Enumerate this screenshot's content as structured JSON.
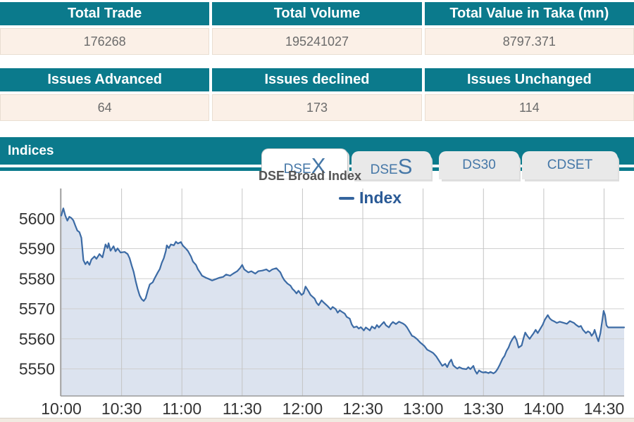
{
  "tables": [
    {
      "headers": [
        "Total Trade",
        "Total Volume",
        "Total Value in Taka (mn)"
      ],
      "values": [
        "176268",
        "195241027",
        "8797.371"
      ]
    },
    {
      "headers": [
        "Issues Advanced",
        "Issues declined",
        "Issues Unchanged"
      ],
      "values": [
        "64",
        "173",
        "114"
      ]
    }
  ],
  "indices": {
    "title": "Indices"
  },
  "tabs": [
    {
      "label_prefix": "DSE",
      "label_suffix": "X",
      "active": true
    },
    {
      "label_prefix": "DSE",
      "label_suffix": "S",
      "active": false
    },
    {
      "label": "DS30",
      "active": false
    },
    {
      "label": "CDSET",
      "active": false
    }
  ],
  "theme": {
    "teal": "#0b7a8c",
    "cream": "#fbf0e7",
    "tab_text_blue": "#4577a7",
    "legend_blue": "#2a5a96"
  },
  "chart_data": {
    "type": "area",
    "title": "DSE Broad Index",
    "legend_label": "Index",
    "legend_position": "top-center",
    "grid": true,
    "xlim": [
      0,
      280
    ],
    "ylim": [
      5541,
      5610
    ],
    "x_unit": "minutes after 10:00",
    "x_ticks": [
      {
        "t": 0,
        "label": "10:00"
      },
      {
        "t": 30,
        "label": "10:30"
      },
      {
        "t": 60,
        "label": "11:00"
      },
      {
        "t": 90,
        "label": "11:30"
      },
      {
        "t": 120,
        "label": "12:00"
      },
      {
        "t": 150,
        "label": "12:30"
      },
      {
        "t": 180,
        "label": "13:00"
      },
      {
        "t": 210,
        "label": "13:30"
      },
      {
        "t": 240,
        "label": "14:00"
      },
      {
        "t": 270,
        "label": "14:30"
      }
    ],
    "y_ticks": [
      5550,
      5560,
      5570,
      5580,
      5590,
      5600
    ],
    "colors": {
      "line": "#3c6ba5",
      "fill": "#dce3ef"
    },
    "series": [
      {
        "name": "Index",
        "points": [
          [
            0,
            5601
          ],
          [
            1,
            5603.4
          ],
          [
            2,
            5601
          ],
          [
            3,
            5599.3
          ],
          [
            4,
            5600.6
          ],
          [
            5,
            5600.2
          ],
          [
            6,
            5599.4
          ],
          [
            7,
            5597.6
          ],
          [
            8,
            5596
          ],
          [
            9,
            5595.5
          ],
          [
            10,
            5593.6
          ],
          [
            11,
            5586.2
          ],
          [
            12,
            5584.8
          ],
          [
            13,
            5585.7
          ],
          [
            14,
            5584.6
          ],
          [
            15,
            5586.4
          ],
          [
            16.5,
            5587.4
          ],
          [
            17.5,
            5586.6
          ],
          [
            19,
            5588.2
          ],
          [
            20.5,
            5587.1
          ],
          [
            22,
            5591.4
          ],
          [
            23,
            5590.2
          ],
          [
            23.5,
            5591.8
          ],
          [
            24.5,
            5589.3
          ],
          [
            26,
            5590.8
          ],
          [
            27,
            5589.1
          ],
          [
            28,
            5590.1
          ],
          [
            29.5,
            5588.7
          ],
          [
            31.5,
            5588.9
          ],
          [
            33,
            5588.2
          ],
          [
            34,
            5586.8
          ],
          [
            35,
            5584.4
          ],
          [
            36,
            5582.3
          ],
          [
            37,
            5579.2
          ],
          [
            38,
            5576.6
          ],
          [
            39,
            5574.4
          ],
          [
            40,
            5573.2
          ],
          [
            41,
            5572.6
          ],
          [
            42,
            5573.5
          ],
          [
            43,
            5576
          ],
          [
            44,
            5578.1
          ],
          [
            45.5,
            5578.8
          ],
          [
            46.5,
            5580.2
          ],
          [
            48,
            5582.1
          ],
          [
            49,
            5583.2
          ],
          [
            50,
            5585.3
          ],
          [
            51,
            5586.8
          ],
          [
            52,
            5589.2
          ],
          [
            52.5,
            5591.1
          ],
          [
            53.5,
            5590.2
          ],
          [
            54.5,
            5591.4
          ],
          [
            56,
            5591.1
          ],
          [
            57,
            5592.3
          ],
          [
            58,
            5591.7
          ],
          [
            59.5,
            5592.2
          ],
          [
            60.5,
            5591
          ],
          [
            62,
            5590
          ],
          [
            63,
            5589.2
          ],
          [
            64.5,
            5587.4
          ],
          [
            65.5,
            5585.7
          ],
          [
            67,
            5584.6
          ],
          [
            68,
            5583.1
          ],
          [
            69,
            5582.1
          ],
          [
            70,
            5581
          ],
          [
            72,
            5580.3
          ],
          [
            73.5,
            5579.9
          ],
          [
            75,
            5579.4
          ],
          [
            77,
            5579.9
          ],
          [
            78.5,
            5580.3
          ],
          [
            80.5,
            5580.6
          ],
          [
            82,
            5581.4
          ],
          [
            84,
            5581
          ],
          [
            85.5,
            5581.7
          ],
          [
            87.5,
            5582.5
          ],
          [
            89,
            5583.6
          ],
          [
            90,
            5584.6
          ],
          [
            91,
            5583.1
          ],
          [
            93,
            5582.1
          ],
          [
            94.5,
            5582.5
          ],
          [
            96.5,
            5581.7
          ],
          [
            98,
            5582.5
          ],
          [
            100,
            5582.7
          ],
          [
            102,
            5583.1
          ],
          [
            103.5,
            5582.4
          ],
          [
            105,
            5583.1
          ],
          [
            107,
            5583.5
          ],
          [
            109,
            5582.1
          ],
          [
            110,
            5580.6
          ],
          [
            111,
            5579.5
          ],
          [
            112.5,
            5578.4
          ],
          [
            114,
            5577.7
          ],
          [
            115,
            5576.6
          ],
          [
            116,
            5576
          ],
          [
            117,
            5575.1
          ],
          [
            118,
            5576
          ],
          [
            119.5,
            5574.6
          ],
          [
            120.5,
            5575.1
          ],
          [
            121.5,
            5577.4
          ],
          [
            123,
            5575.8
          ],
          [
            124,
            5574.6
          ],
          [
            125,
            5574
          ],
          [
            126,
            5573.4
          ],
          [
            127,
            5572
          ],
          [
            128,
            5571.2
          ],
          [
            129.5,
            5572.8
          ],
          [
            130.5,
            5572.1
          ],
          [
            132.5,
            5570.9
          ],
          [
            134,
            5569.8
          ],
          [
            135,
            5570.6
          ],
          [
            136.5,
            5569.9
          ],
          [
            137.5,
            5568.7
          ],
          [
            138.5,
            5569.5
          ],
          [
            140,
            5568.8
          ],
          [
            141,
            5568.4
          ],
          [
            142,
            5567.3
          ],
          [
            143.5,
            5566.7
          ],
          [
            144.5,
            5564.8
          ],
          [
            145.5,
            5563.8
          ],
          [
            147,
            5564.1
          ],
          [
            148,
            5563.4
          ],
          [
            149,
            5563.9
          ],
          [
            150.5,
            5562.8
          ],
          [
            151.5,
            5563.8
          ],
          [
            153.5,
            5562.8
          ],
          [
            154.5,
            5564.1
          ],
          [
            156,
            5563.4
          ],
          [
            157,
            5564.6
          ],
          [
            158,
            5563.8
          ],
          [
            159.5,
            5564.9
          ],
          [
            160.5,
            5565.6
          ],
          [
            161.5,
            5564.5
          ],
          [
            163,
            5563.8
          ],
          [
            164,
            5564.9
          ],
          [
            165,
            5565.6
          ],
          [
            166.5,
            5564.9
          ],
          [
            168,
            5565.7
          ],
          [
            169,
            5565.4
          ],
          [
            170,
            5565.1
          ],
          [
            171,
            5564.6
          ],
          [
            172,
            5563.8
          ],
          [
            173.5,
            5562.1
          ],
          [
            174.5,
            5561
          ],
          [
            175.5,
            5560.7
          ],
          [
            177,
            5559.9
          ],
          [
            178.5,
            5558.8
          ],
          [
            180.5,
            5557.7
          ],
          [
            182,
            5556.4
          ],
          [
            184,
            5555.7
          ],
          [
            185,
            5555.3
          ],
          [
            186.5,
            5554.2
          ],
          [
            188.5,
            5552.1
          ],
          [
            189.5,
            5551
          ],
          [
            191,
            5551.7
          ],
          [
            192,
            5550.6
          ],
          [
            193,
            5552.1
          ],
          [
            194,
            5553.1
          ],
          [
            195,
            5551.2
          ],
          [
            196,
            5550.6
          ],
          [
            197,
            5550.1
          ],
          [
            198,
            5550.6
          ],
          [
            199.5,
            5550.1
          ],
          [
            201.5,
            5549.9
          ],
          [
            202.5,
            5550.6
          ],
          [
            203.5,
            5549.9
          ],
          [
            205,
            5551
          ],
          [
            205.8,
            5549.5
          ],
          [
            206.8,
            5548.4
          ],
          [
            207.8,
            5549.5
          ],
          [
            209,
            5549
          ],
          [
            210,
            5548.8
          ],
          [
            211,
            5549
          ],
          [
            212.5,
            5548.6
          ],
          [
            213.5,
            5549
          ],
          [
            215,
            5548.5
          ],
          [
            216,
            5549
          ],
          [
            217,
            5549.9
          ],
          [
            218,
            5551.2
          ],
          [
            219.5,
            5553.4
          ],
          [
            220.5,
            5554.3
          ],
          [
            221.5,
            5556
          ],
          [
            222.5,
            5557.1
          ],
          [
            223.5,
            5558.8
          ],
          [
            224.5,
            5560
          ],
          [
            225.5,
            5560.9
          ],
          [
            226.5,
            5559.6
          ],
          [
            227.5,
            5557.1
          ],
          [
            229,
            5557.8
          ],
          [
            230,
            5560.3
          ],
          [
            230.8,
            5562.1
          ],
          [
            231.8,
            5561
          ],
          [
            233,
            5560
          ],
          [
            233.8,
            5560.8
          ],
          [
            235,
            5561.9
          ],
          [
            236,
            5563
          ],
          [
            237,
            5561.9
          ],
          [
            238,
            5563
          ],
          [
            239.5,
            5564.7
          ],
          [
            240.5,
            5566.3
          ],
          [
            242,
            5567.9
          ],
          [
            243,
            5566.8
          ],
          [
            244,
            5566.2
          ],
          [
            245.5,
            5565.7
          ],
          [
            246.5,
            5565.3
          ],
          [
            248,
            5565.7
          ],
          [
            250,
            5565.3
          ],
          [
            251.5,
            5565
          ],
          [
            253,
            5565.9
          ],
          [
            255,
            5565.3
          ],
          [
            256,
            5564.7
          ],
          [
            257.5,
            5564
          ],
          [
            258.5,
            5564.3
          ],
          [
            259.5,
            5563
          ],
          [
            261,
            5561.9
          ],
          [
            262,
            5562.5
          ],
          [
            263,
            5562.1
          ],
          [
            263.8,
            5561
          ],
          [
            264.8,
            5561.9
          ],
          [
            265.3,
            5563
          ],
          [
            266.5,
            5560.4
          ],
          [
            267.2,
            5559.2
          ],
          [
            268.2,
            5561.9
          ],
          [
            268.7,
            5564.3
          ],
          [
            269.2,
            5566.5
          ],
          [
            269.8,
            5569.3
          ],
          [
            270.5,
            5567.9
          ],
          [
            271.2,
            5564.5
          ],
          [
            272,
            5563.8
          ],
          [
            280,
            5563.8
          ]
        ]
      }
    ]
  }
}
